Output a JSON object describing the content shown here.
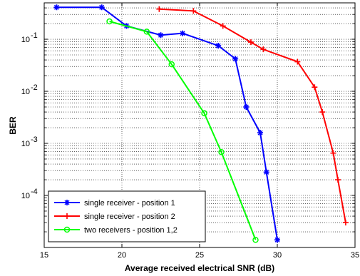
{
  "chart_data": {
    "type": "line",
    "title": "",
    "xlabel": "Average received electrical SNR (dB)",
    "ylabel": "BER",
    "xlim": [
      15,
      35
    ],
    "ylim": [
      1e-05,
      0.5
    ],
    "yscale": "log",
    "grid": true,
    "legend_position": "bottom-left",
    "x_ticks": [
      15,
      20,
      25,
      30,
      35
    ],
    "y_ticks": [
      {
        "value": 0.1,
        "base": "10",
        "exp": "-1"
      },
      {
        "value": 0.01,
        "base": "10",
        "exp": "-2"
      },
      {
        "value": 0.001,
        "base": "10",
        "exp": "-3"
      },
      {
        "value": 0.0001,
        "base": "10",
        "exp": "-4"
      }
    ],
    "series": [
      {
        "name": "single receiver - position 1",
        "color": "#0000ff",
        "marker": "star",
        "points": [
          [
            15.8,
            0.41
          ],
          [
            18.7,
            0.41
          ],
          [
            20.3,
            0.18
          ],
          [
            22.5,
            0.12
          ],
          [
            23.9,
            0.13
          ],
          [
            26.2,
            0.075
          ],
          [
            27.3,
            0.042
          ],
          [
            28.0,
            0.005
          ],
          [
            28.9,
            0.0016
          ],
          [
            29.3,
            0.00028
          ],
          [
            30.0,
            1.4e-05
          ]
        ]
      },
      {
        "name": "single receiver - position 2",
        "color": "#ff0000",
        "marker": "plus",
        "points": [
          [
            22.4,
            0.38
          ],
          [
            24.6,
            0.35
          ],
          [
            26.5,
            0.18
          ],
          [
            28.3,
            0.088
          ],
          [
            29.1,
            0.064
          ],
          [
            31.3,
            0.037
          ],
          [
            32.4,
            0.012
          ],
          [
            32.9,
            0.004
          ],
          [
            33.6,
            0.00065
          ],
          [
            33.9,
            0.0002
          ],
          [
            34.4,
            3e-05
          ]
        ]
      },
      {
        "name": "two receivers - position 1,2",
        "color": "#00ff00",
        "marker": "circle",
        "points": [
          [
            19.2,
            0.22
          ],
          [
            21.6,
            0.14
          ],
          [
            23.2,
            0.033
          ],
          [
            25.3,
            0.0038
          ],
          [
            26.4,
            0.00068
          ],
          [
            28.6,
            1.4e-05
          ]
        ]
      }
    ]
  }
}
